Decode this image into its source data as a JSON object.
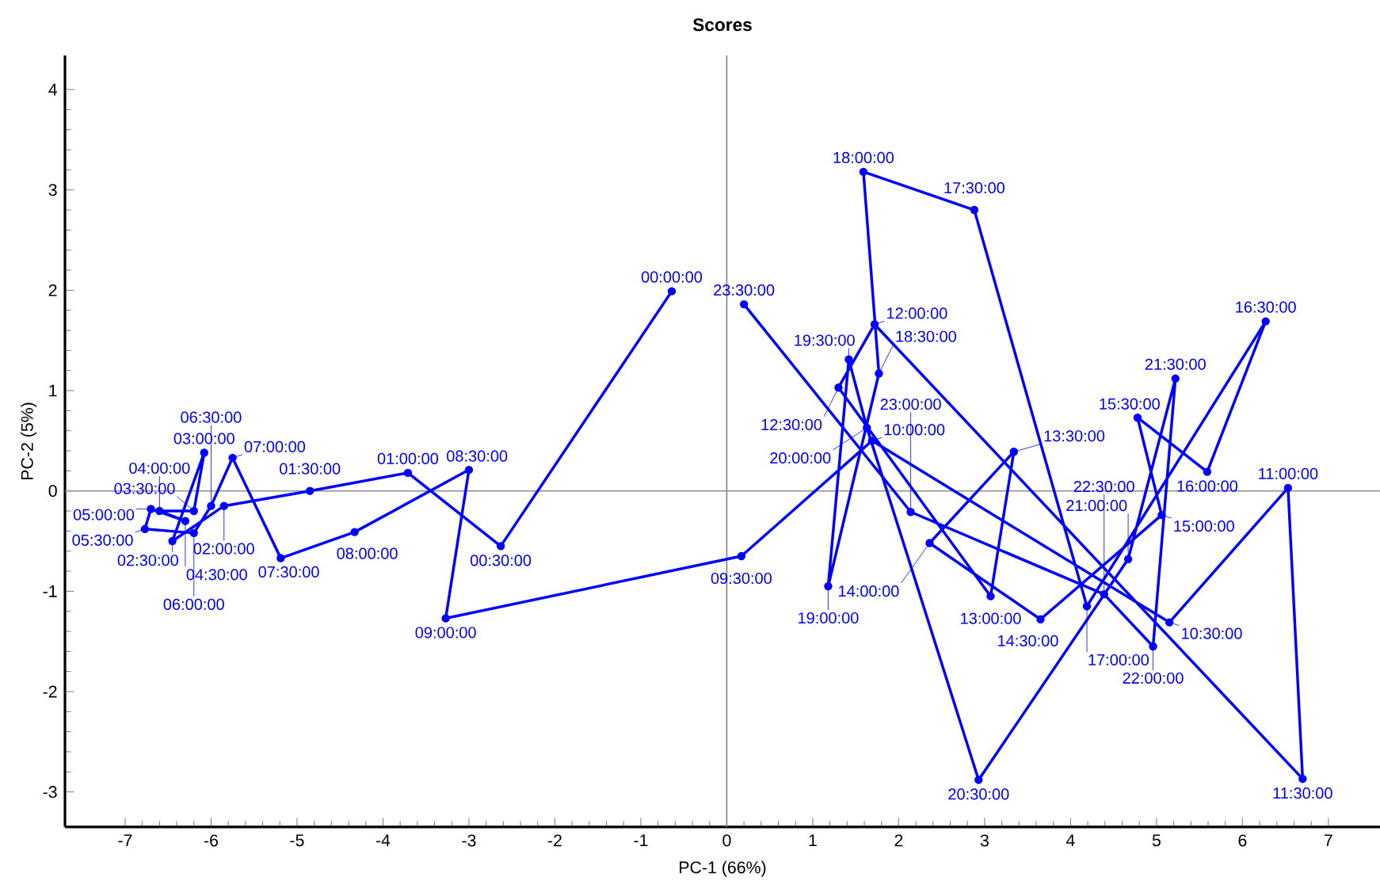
{
  "chart_data": {
    "type": "line",
    "title": "Scores",
    "xlabel": "PC-1 (66%)",
    "ylabel": "PC-2 (5%)",
    "xlim": [
      -7.7,
      7.6
    ],
    "ylim": [
      -3.35,
      4.34
    ],
    "xticks": [
      -7,
      -6,
      -5,
      -4,
      -3,
      -2,
      -1,
      0,
      1,
      2,
      3,
      4,
      5,
      6,
      7
    ],
    "yticks": [
      -3,
      -2,
      -1,
      0,
      1,
      2,
      3,
      4
    ],
    "grid": false,
    "marker": "circle",
    "line_style": "solid",
    "ref_lines": [
      {
        "axis": "x",
        "value": 0,
        "color": "#808080"
      },
      {
        "axis": "y",
        "value": 0,
        "color": "#909090"
      }
    ],
    "series": [
      {
        "color": "#0000ff",
        "x": [
          -0.64,
          -2.63,
          -3.71,
          -4.85,
          -5.85,
          -6.45,
          -6.08,
          -6.2,
          -6.6,
          -6.3,
          -6.7,
          -6.77,
          -6.2,
          -6.0,
          -5.75,
          -5.19,
          -4.33,
          -3.0,
          -3.27,
          0.17,
          1.69,
          5.15,
          6.53,
          6.7,
          1.72,
          1.3,
          3.07,
          3.34,
          2.36,
          3.65,
          5.06,
          4.78,
          5.59,
          6.27,
          4.19,
          2.88,
          1.59,
          1.77,
          1.18,
          1.42,
          1.63,
          2.93,
          4.67,
          5.22,
          4.96,
          4.39,
          2.14,
          0.2
        ],
        "values": [
          1.99,
          -0.55,
          0.18,
          0.0,
          -0.15,
          -0.5,
          0.38,
          -0.2,
          -0.2,
          -0.3,
          -0.18,
          -0.38,
          -0.42,
          -0.15,
          0.33,
          -0.67,
          -0.41,
          0.21,
          -1.27,
          -0.65,
          0.5,
          -1.31,
          0.03,
          -2.87,
          1.66,
          1.03,
          -1.05,
          0.39,
          -0.52,
          -1.28,
          -0.24,
          0.73,
          0.19,
          1.69,
          -1.15,
          2.8,
          3.18,
          1.17,
          -0.95,
          1.31,
          0.63,
          -2.88,
          -0.68,
          1.12,
          -1.55,
          -1.03,
          -0.21,
          1.86
        ]
      }
    ],
    "annotations": [
      {
        "text": "00:00:00",
        "x": -0.64,
        "y": 1.99
      },
      {
        "text": "00:30:00",
        "x": -2.63,
        "y": -0.55
      },
      {
        "text": "01:00:00",
        "x": -3.71,
        "y": 0.18
      },
      {
        "text": "01:30:00",
        "x": -4.85,
        "y": 0.0
      },
      {
        "text": "02:00:00",
        "x": -5.85,
        "y": -0.15
      },
      {
        "text": "02:30:00",
        "x": -6.45,
        "y": -0.5
      },
      {
        "text": "03:00:00",
        "x": -6.08,
        "y": 0.38
      },
      {
        "text": "03:30:00",
        "x": -6.2,
        "y": -0.2
      },
      {
        "text": "04:00:00",
        "x": -6.6,
        "y": -0.2
      },
      {
        "text": "04:30:00",
        "x": -6.3,
        "y": -0.3
      },
      {
        "text": "05:00:00",
        "x": -6.7,
        "y": -0.18
      },
      {
        "text": "05:30:00",
        "x": -6.77,
        "y": -0.38
      },
      {
        "text": "06:00:00",
        "x": -6.2,
        "y": -0.42
      },
      {
        "text": "06:30:00",
        "x": -6.0,
        "y": -0.15
      },
      {
        "text": "07:00:00",
        "x": -5.75,
        "y": 0.33
      },
      {
        "text": "07:30:00",
        "x": -5.19,
        "y": -0.67
      },
      {
        "text": "08:00:00",
        "x": -4.33,
        "y": -0.41
      },
      {
        "text": "08:30:00",
        "x": -3.0,
        "y": 0.21
      },
      {
        "text": "09:00:00",
        "x": -3.27,
        "y": -1.27
      },
      {
        "text": "09:30:00",
        "x": 0.17,
        "y": -0.65
      },
      {
        "text": "10:00:00",
        "x": 1.69,
        "y": 0.5
      },
      {
        "text": "10:30:00",
        "x": 5.15,
        "y": -1.31
      },
      {
        "text": "11:00:00",
        "x": 6.53,
        "y": 0.03
      },
      {
        "text": "11:30:00",
        "x": 6.7,
        "y": -2.87
      },
      {
        "text": "12:00:00",
        "x": 1.72,
        "y": 1.66
      },
      {
        "text": "12:30:00",
        "x": 1.3,
        "y": 1.03
      },
      {
        "text": "13:00:00",
        "x": 3.07,
        "y": -1.05
      },
      {
        "text": "13:30:00",
        "x": 3.34,
        "y": 0.39
      },
      {
        "text": "14:00:00",
        "x": 2.36,
        "y": -0.52
      },
      {
        "text": "14:30:00",
        "x": 3.65,
        "y": -1.28
      },
      {
        "text": "15:00:00",
        "x": 5.06,
        "y": -0.24
      },
      {
        "text": "15:30:00",
        "x": 4.78,
        "y": 0.73
      },
      {
        "text": "16:00:00",
        "x": 5.59,
        "y": 0.19
      },
      {
        "text": "16:30:00",
        "x": 6.27,
        "y": 1.69
      },
      {
        "text": "17:00:00",
        "x": 4.19,
        "y": -1.15
      },
      {
        "text": "17:30:00",
        "x": 2.88,
        "y": 2.8
      },
      {
        "text": "18:00:00",
        "x": 1.59,
        "y": 3.18
      },
      {
        "text": "18:30:00",
        "x": 1.77,
        "y": 1.17
      },
      {
        "text": "19:00:00",
        "x": 1.18,
        "y": -0.95
      },
      {
        "text": "19:30:00",
        "x": 1.42,
        "y": 1.31
      },
      {
        "text": "20:00:00",
        "x": 1.63,
        "y": 0.63
      },
      {
        "text": "20:30:00",
        "x": 2.93,
        "y": -2.88
      },
      {
        "text": "21:00:00",
        "x": 4.67,
        "y": -0.68
      },
      {
        "text": "21:30:00",
        "x": 5.22,
        "y": 1.12
      },
      {
        "text": "22:00:00",
        "x": 4.96,
        "y": -1.55
      },
      {
        "text": "22:30:00",
        "x": 4.39,
        "y": -1.03
      },
      {
        "text": "23:00:00",
        "x": 2.14,
        "y": -0.21
      },
      {
        "text": "23:30:00",
        "x": 0.2,
        "y": 1.86
      }
    ]
  }
}
